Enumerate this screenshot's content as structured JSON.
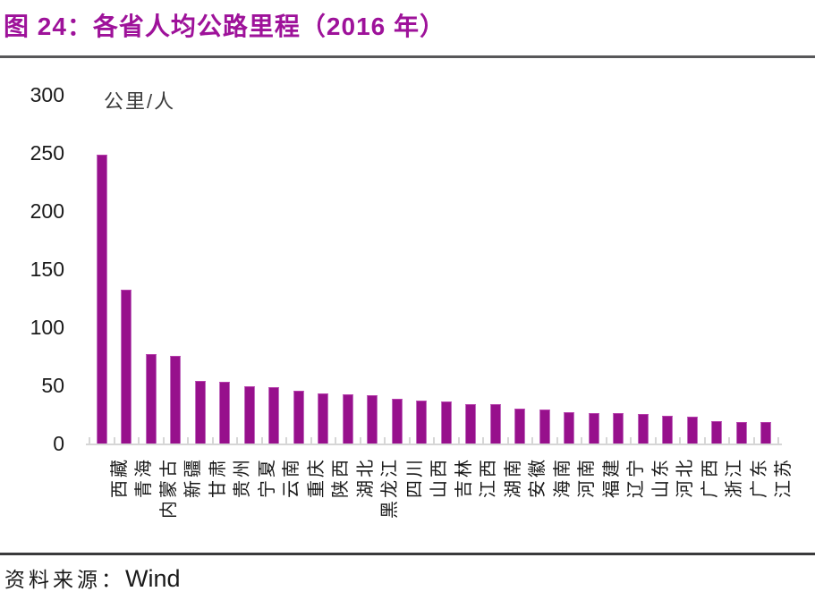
{
  "header": {
    "title": "图 24：各省人均公路里程（2016 年）"
  },
  "footer": {
    "source_label": "资料来源：",
    "source_value": "Wind"
  },
  "chart_data": {
    "type": "bar",
    "title": "图 24：各省人均公路里程（2016 年）",
    "unit_label": "公里/人",
    "categories": [
      "西藏",
      "青海",
      "内蒙古",
      "新疆",
      "甘肃",
      "贵州",
      "宁夏",
      "云南",
      "重庆",
      "陕西",
      "湖北",
      "黑龙江",
      "四川",
      "山西",
      "吉林",
      "江西",
      "湖南",
      "安徽",
      "海南",
      "河南",
      "福建",
      "辽宁",
      "山东",
      "河北",
      "广西",
      "浙江",
      "广东",
      "江苏"
    ],
    "values": [
      249,
      133,
      78,
      76,
      55,
      54,
      50,
      49,
      46,
      44,
      43,
      42,
      39,
      38,
      37,
      35,
      35,
      31,
      30,
      28,
      27,
      27,
      26,
      25,
      24,
      20,
      19,
      19
    ],
    "xlabel": "",
    "ylabel": "公里/人",
    "ylim": [
      0,
      300
    ],
    "y_ticks": [
      300,
      250,
      200,
      150,
      100,
      50,
      0
    ],
    "x_label_rotation_deg": -90,
    "grid": false,
    "legend_position": "none",
    "bar_color": "#97108C",
    "axis_color": "#D6D6D6",
    "title_color": "#9E129A",
    "source": "Wind"
  }
}
